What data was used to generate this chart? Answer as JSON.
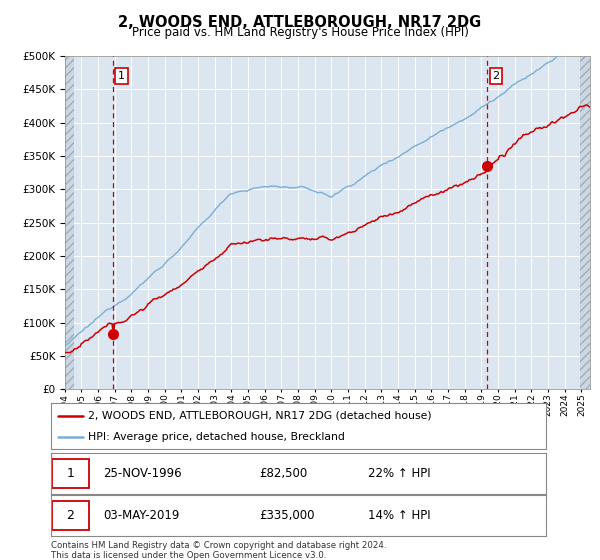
{
  "title": "2, WOODS END, ATTLEBOROUGH, NR17 2DG",
  "subtitle": "Price paid vs. HM Land Registry's House Price Index (HPI)",
  "legend_line1": "2, WOODS END, ATTLEBOROUGH, NR17 2DG (detached house)",
  "legend_line2": "HPI: Average price, detached house, Breckland",
  "annotation1_date": "25-NOV-1996",
  "annotation1_price": "£82,500",
  "annotation1_hpi": "22% ↑ HPI",
  "annotation2_date": "03-MAY-2019",
  "annotation2_price": "£335,000",
  "annotation2_hpi": "14% ↑ HPI",
  "footer": "Contains HM Land Registry data © Crown copyright and database right 2024.\nThis data is licensed under the Open Government Licence v3.0.",
  "hpi_color": "#7bafd4",
  "property_color": "#cc0000",
  "vline_color": "#cc0000",
  "bg_color": "#dce6f1",
  "ylim": [
    0,
    500000
  ],
  "yticks": [
    0,
    50000,
    100000,
    150000,
    200000,
    250000,
    300000,
    350000,
    400000,
    450000,
    500000
  ],
  "sale1_year": 1996.9,
  "sale1_value": 82500,
  "sale2_year": 2019.35,
  "sale2_value": 335000
}
